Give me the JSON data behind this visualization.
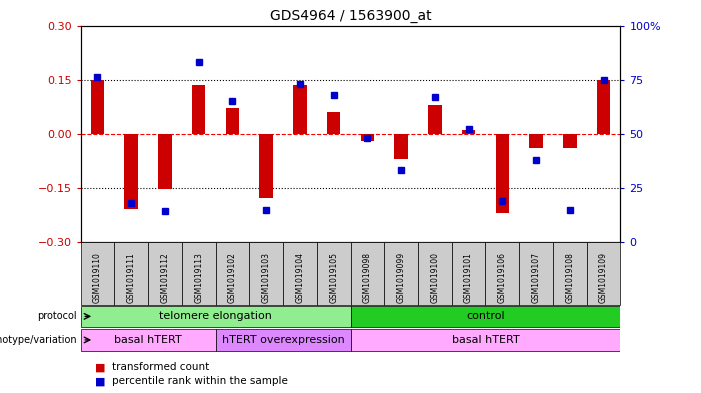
{
  "title": "GDS4964 / 1563900_at",
  "samples": [
    "GSM1019110",
    "GSM1019111",
    "GSM1019112",
    "GSM1019113",
    "GSM1019102",
    "GSM1019103",
    "GSM1019104",
    "GSM1019105",
    "GSM1019098",
    "GSM1019099",
    "GSM1019100",
    "GSM1019101",
    "GSM1019106",
    "GSM1019107",
    "GSM1019108",
    "GSM1019109"
  ],
  "red_values": [
    0.15,
    -0.21,
    -0.155,
    0.135,
    0.07,
    -0.18,
    0.135,
    0.06,
    -0.02,
    -0.07,
    0.08,
    0.01,
    -0.22,
    -0.04,
    -0.04,
    0.15
  ],
  "blue_values": [
    0.76,
    0.18,
    0.14,
    0.83,
    0.65,
    0.145,
    0.73,
    0.68,
    0.48,
    0.33,
    0.67,
    0.52,
    0.19,
    0.38,
    0.145,
    0.75
  ],
  "ylim_left": [
    -0.3,
    0.3
  ],
  "ylim_right": [
    0,
    100
  ],
  "left_yticks": [
    -0.3,
    -0.15,
    0,
    0.15,
    0.3
  ],
  "right_yticks": [
    0,
    25,
    50,
    75,
    100
  ],
  "dotted_lines": [
    -0.15,
    0.15
  ],
  "protocol_groups": [
    {
      "label": "telomere elongation",
      "start": 0,
      "end": 7,
      "color": "#90ee90"
    },
    {
      "label": "control",
      "start": 8,
      "end": 15,
      "color": "#22cc22"
    }
  ],
  "genotype_groups": [
    {
      "label": "basal hTERT",
      "start": 0,
      "end": 3,
      "color": "#ffaaff"
    },
    {
      "label": "hTERT overexpression",
      "start": 4,
      "end": 7,
      "color": "#dd88ff"
    },
    {
      "label": "basal hTERT",
      "start": 8,
      "end": 15,
      "color": "#ffaaff"
    }
  ],
  "bar_color": "#cc0000",
  "dot_color": "#0000cc",
  "legend_items": [
    "transformed count",
    "percentile rank within the sample"
  ],
  "left_tick_color": "#cc0000",
  "right_tick_color": "#0000cc"
}
